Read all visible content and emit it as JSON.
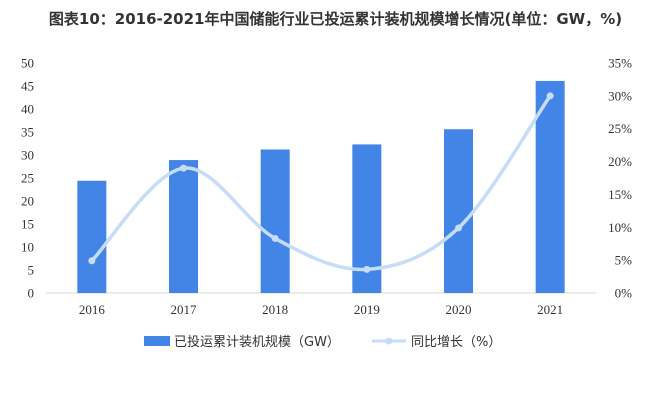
{
  "chart_data": {
    "type": "bar",
    "title": "图表10：2016-2021年中国储能行业已投运累计装机规模增长情况(单位：GW，%)",
    "categories": [
      "2016",
      "2017",
      "2018",
      "2019",
      "2020",
      "2021"
    ],
    "series": [
      {
        "name": "已投运累计装机规模（GW）",
        "type": "bar",
        "axis": "left",
        "color": "#4285e6",
        "values": [
          24.4,
          28.9,
          31.2,
          32.3,
          35.6,
          46.1
        ]
      },
      {
        "name": "同比增长（%）",
        "type": "line",
        "axis": "right",
        "color": "#c6dcf7",
        "values": [
          4.9,
          19.0,
          8.3,
          3.6,
          9.9,
          30.0
        ]
      }
    ],
    "y_left": {
      "min": 0,
      "max": 50,
      "step": 5,
      "ticks": [
        "0",
        "5",
        "10",
        "15",
        "20",
        "25",
        "30",
        "35",
        "40",
        "45",
        "50"
      ]
    },
    "y_right": {
      "min": 0,
      "max": 35,
      "step": 5,
      "ticks": [
        "0%",
        "5%",
        "10%",
        "15%",
        "20%",
        "25%",
        "30%",
        "35%"
      ]
    },
    "grid": false,
    "legend": "bottom"
  }
}
